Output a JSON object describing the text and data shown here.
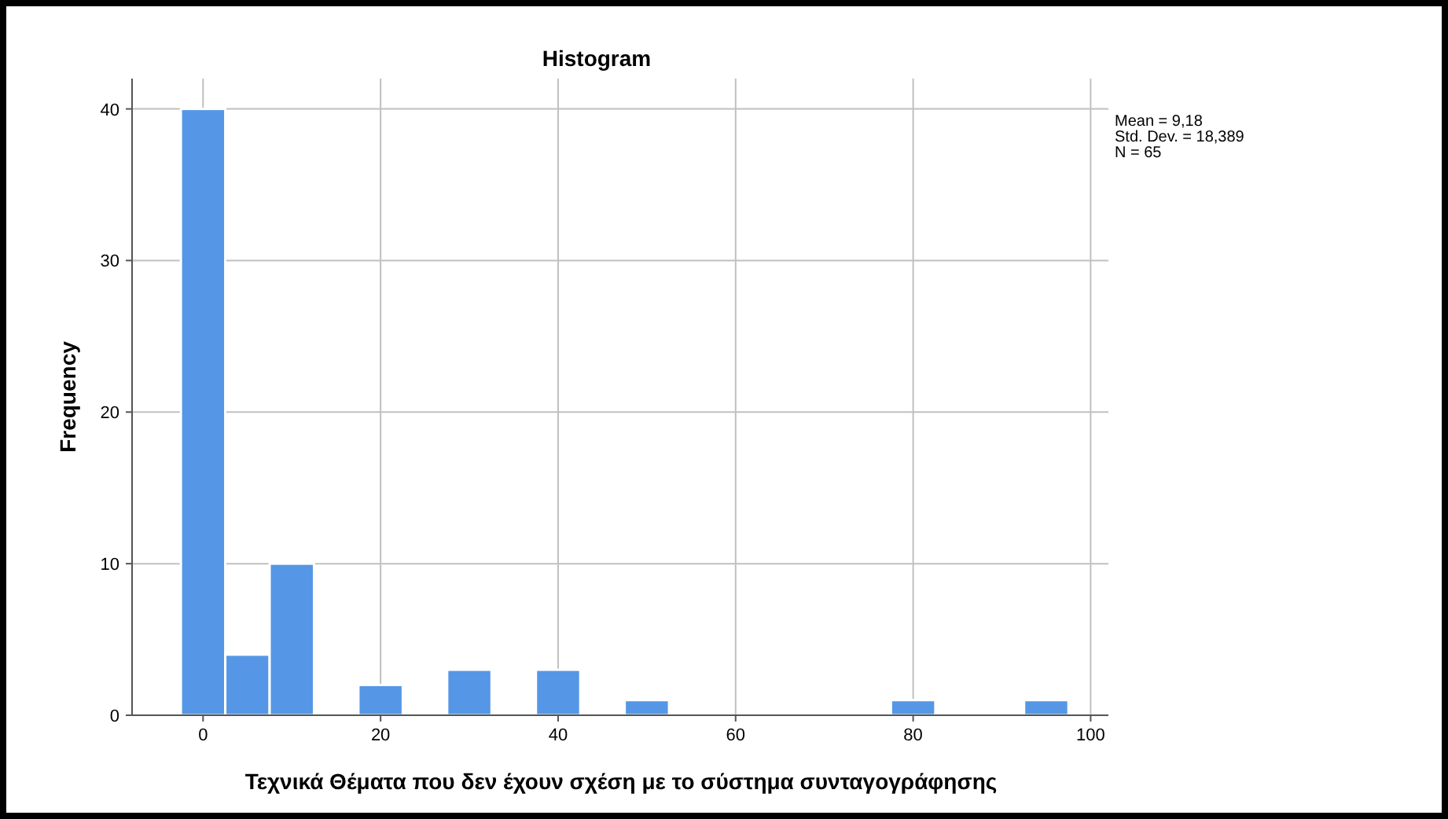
{
  "chart_data": {
    "type": "histogram",
    "title": "Histogram",
    "xlabel": "Τεχνικά Θέματα που δεν έχουν σχέση με το σύστημα συνταγογράφησης",
    "ylabel": "Frequency",
    "bins": [
      -2.5,
      2.5,
      7.5,
      12.5,
      17.5,
      22.5,
      27.5,
      32.5,
      37.5,
      42.5,
      47.5,
      52.5,
      57.5,
      62.5,
      67.5,
      72.5,
      77.5,
      82.5,
      87.5,
      92.5,
      97.5
    ],
    "values": [
      40,
      4,
      10,
      0,
      2,
      0,
      3,
      0,
      3,
      0,
      1,
      0,
      0,
      0,
      0,
      0,
      1,
      0,
      0,
      1
    ],
    "color": "#5597e6",
    "xlim": [
      -8,
      102
    ],
    "xticks": [
      0,
      20,
      40,
      60,
      80,
      100
    ],
    "ylim": [
      0,
      42
    ],
    "yticks": [
      0,
      10,
      20,
      30,
      40
    ],
    "grid": true,
    "annotations": [
      "Mean = 9,18",
      "Std. Dev. = 18,389",
      "N = 65"
    ]
  }
}
